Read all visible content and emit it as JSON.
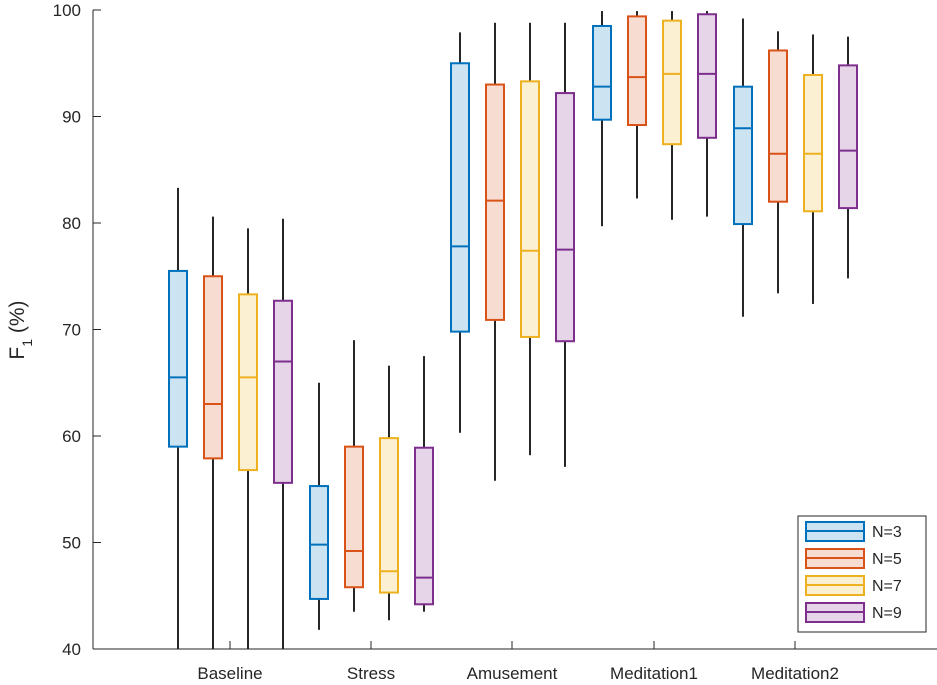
{
  "chart_data": {
    "type": "boxplot",
    "title": "",
    "xlabel": "",
    "ylabel": "F1 (%)",
    "ylabel_parts": {
      "main": "F",
      "sub": "1",
      "rest": " (%)"
    },
    "ylim": [
      40,
      100
    ],
    "yticks": [
      "40",
      "50",
      "60",
      "70",
      "80",
      "90",
      "100"
    ],
    "grid": false,
    "legend_position": "bottom-right",
    "categories": [
      "Baseline",
      "Stress",
      "Amusement",
      "Meditation1",
      "Meditation2"
    ],
    "series": [
      {
        "name": "N=3",
        "color": "#0072BD",
        "fill": "#CCE3F2",
        "boxes": [
          {
            "whisker_low": 40.0,
            "q1": 59.0,
            "median": 65.5,
            "q3": 75.5,
            "whisker_high": 83.3
          },
          {
            "whisker_low": 41.8,
            "q1": 44.7,
            "median": 49.8,
            "q3": 55.3,
            "whisker_high": 65.0
          },
          {
            "whisker_low": 60.3,
            "q1": 69.8,
            "median": 77.8,
            "q3": 95.0,
            "whisker_high": 97.9
          },
          {
            "whisker_low": 79.7,
            "q1": 89.7,
            "median": 92.8,
            "q3": 98.5,
            "whisker_high": 99.9
          },
          {
            "whisker_low": 71.2,
            "q1": 79.9,
            "median": 88.9,
            "q3": 92.8,
            "whisker_high": 99.2
          }
        ]
      },
      {
        "name": "N=5",
        "color": "#D95319",
        "fill": "#F7DDD1",
        "boxes": [
          {
            "whisker_low": 40.0,
            "q1": 57.9,
            "median": 63.0,
            "q3": 75.0,
            "whisker_high": 80.6
          },
          {
            "whisker_low": 43.5,
            "q1": 45.8,
            "median": 49.2,
            "q3": 59.0,
            "whisker_high": 69.0
          },
          {
            "whisker_low": 55.8,
            "q1": 70.9,
            "median": 82.1,
            "q3": 93.0,
            "whisker_high": 98.8
          },
          {
            "whisker_low": 82.3,
            "q1": 89.2,
            "median": 93.7,
            "q3": 99.4,
            "whisker_high": 99.9
          },
          {
            "whisker_low": 73.4,
            "q1": 82.0,
            "median": 86.5,
            "q3": 96.2,
            "whisker_high": 98.0
          }
        ]
      },
      {
        "name": "N=7",
        "color": "#EDB120",
        "fill": "#FBF0D2",
        "boxes": [
          {
            "whisker_low": 40.0,
            "q1": 56.8,
            "median": 65.5,
            "q3": 73.3,
            "whisker_high": 79.5
          },
          {
            "whisker_low": 42.7,
            "q1": 45.3,
            "median": 47.3,
            "q3": 59.8,
            "whisker_high": 66.6
          },
          {
            "whisker_low": 58.2,
            "q1": 69.3,
            "median": 77.4,
            "q3": 93.3,
            "whisker_high": 98.8
          },
          {
            "whisker_low": 80.3,
            "q1": 87.4,
            "median": 94.0,
            "q3": 99.0,
            "whisker_high": 99.9
          },
          {
            "whisker_low": 72.4,
            "q1": 81.1,
            "median": 86.5,
            "q3": 93.9,
            "whisker_high": 97.7
          }
        ]
      },
      {
        "name": "N=9",
        "color": "#7E2F8E",
        "fill": "#E6D5E8",
        "boxes": [
          {
            "whisker_low": 40.0,
            "q1": 55.6,
            "median": 67.0,
            "q3": 72.7,
            "whisker_high": 80.4
          },
          {
            "whisker_low": 43.5,
            "q1": 44.2,
            "median": 46.7,
            "q3": 58.9,
            "whisker_high": 67.5
          },
          {
            "whisker_low": 57.1,
            "q1": 68.9,
            "median": 77.5,
            "q3": 92.2,
            "whisker_high": 98.8
          },
          {
            "whisker_low": 80.6,
            "q1": 88.0,
            "median": 94.0,
            "q3": 99.6,
            "whisker_high": 99.9
          },
          {
            "whisker_low": 74.8,
            "q1": 81.4,
            "median": 86.8,
            "q3": 94.8,
            "whisker_high": 97.5
          }
        ]
      }
    ]
  }
}
